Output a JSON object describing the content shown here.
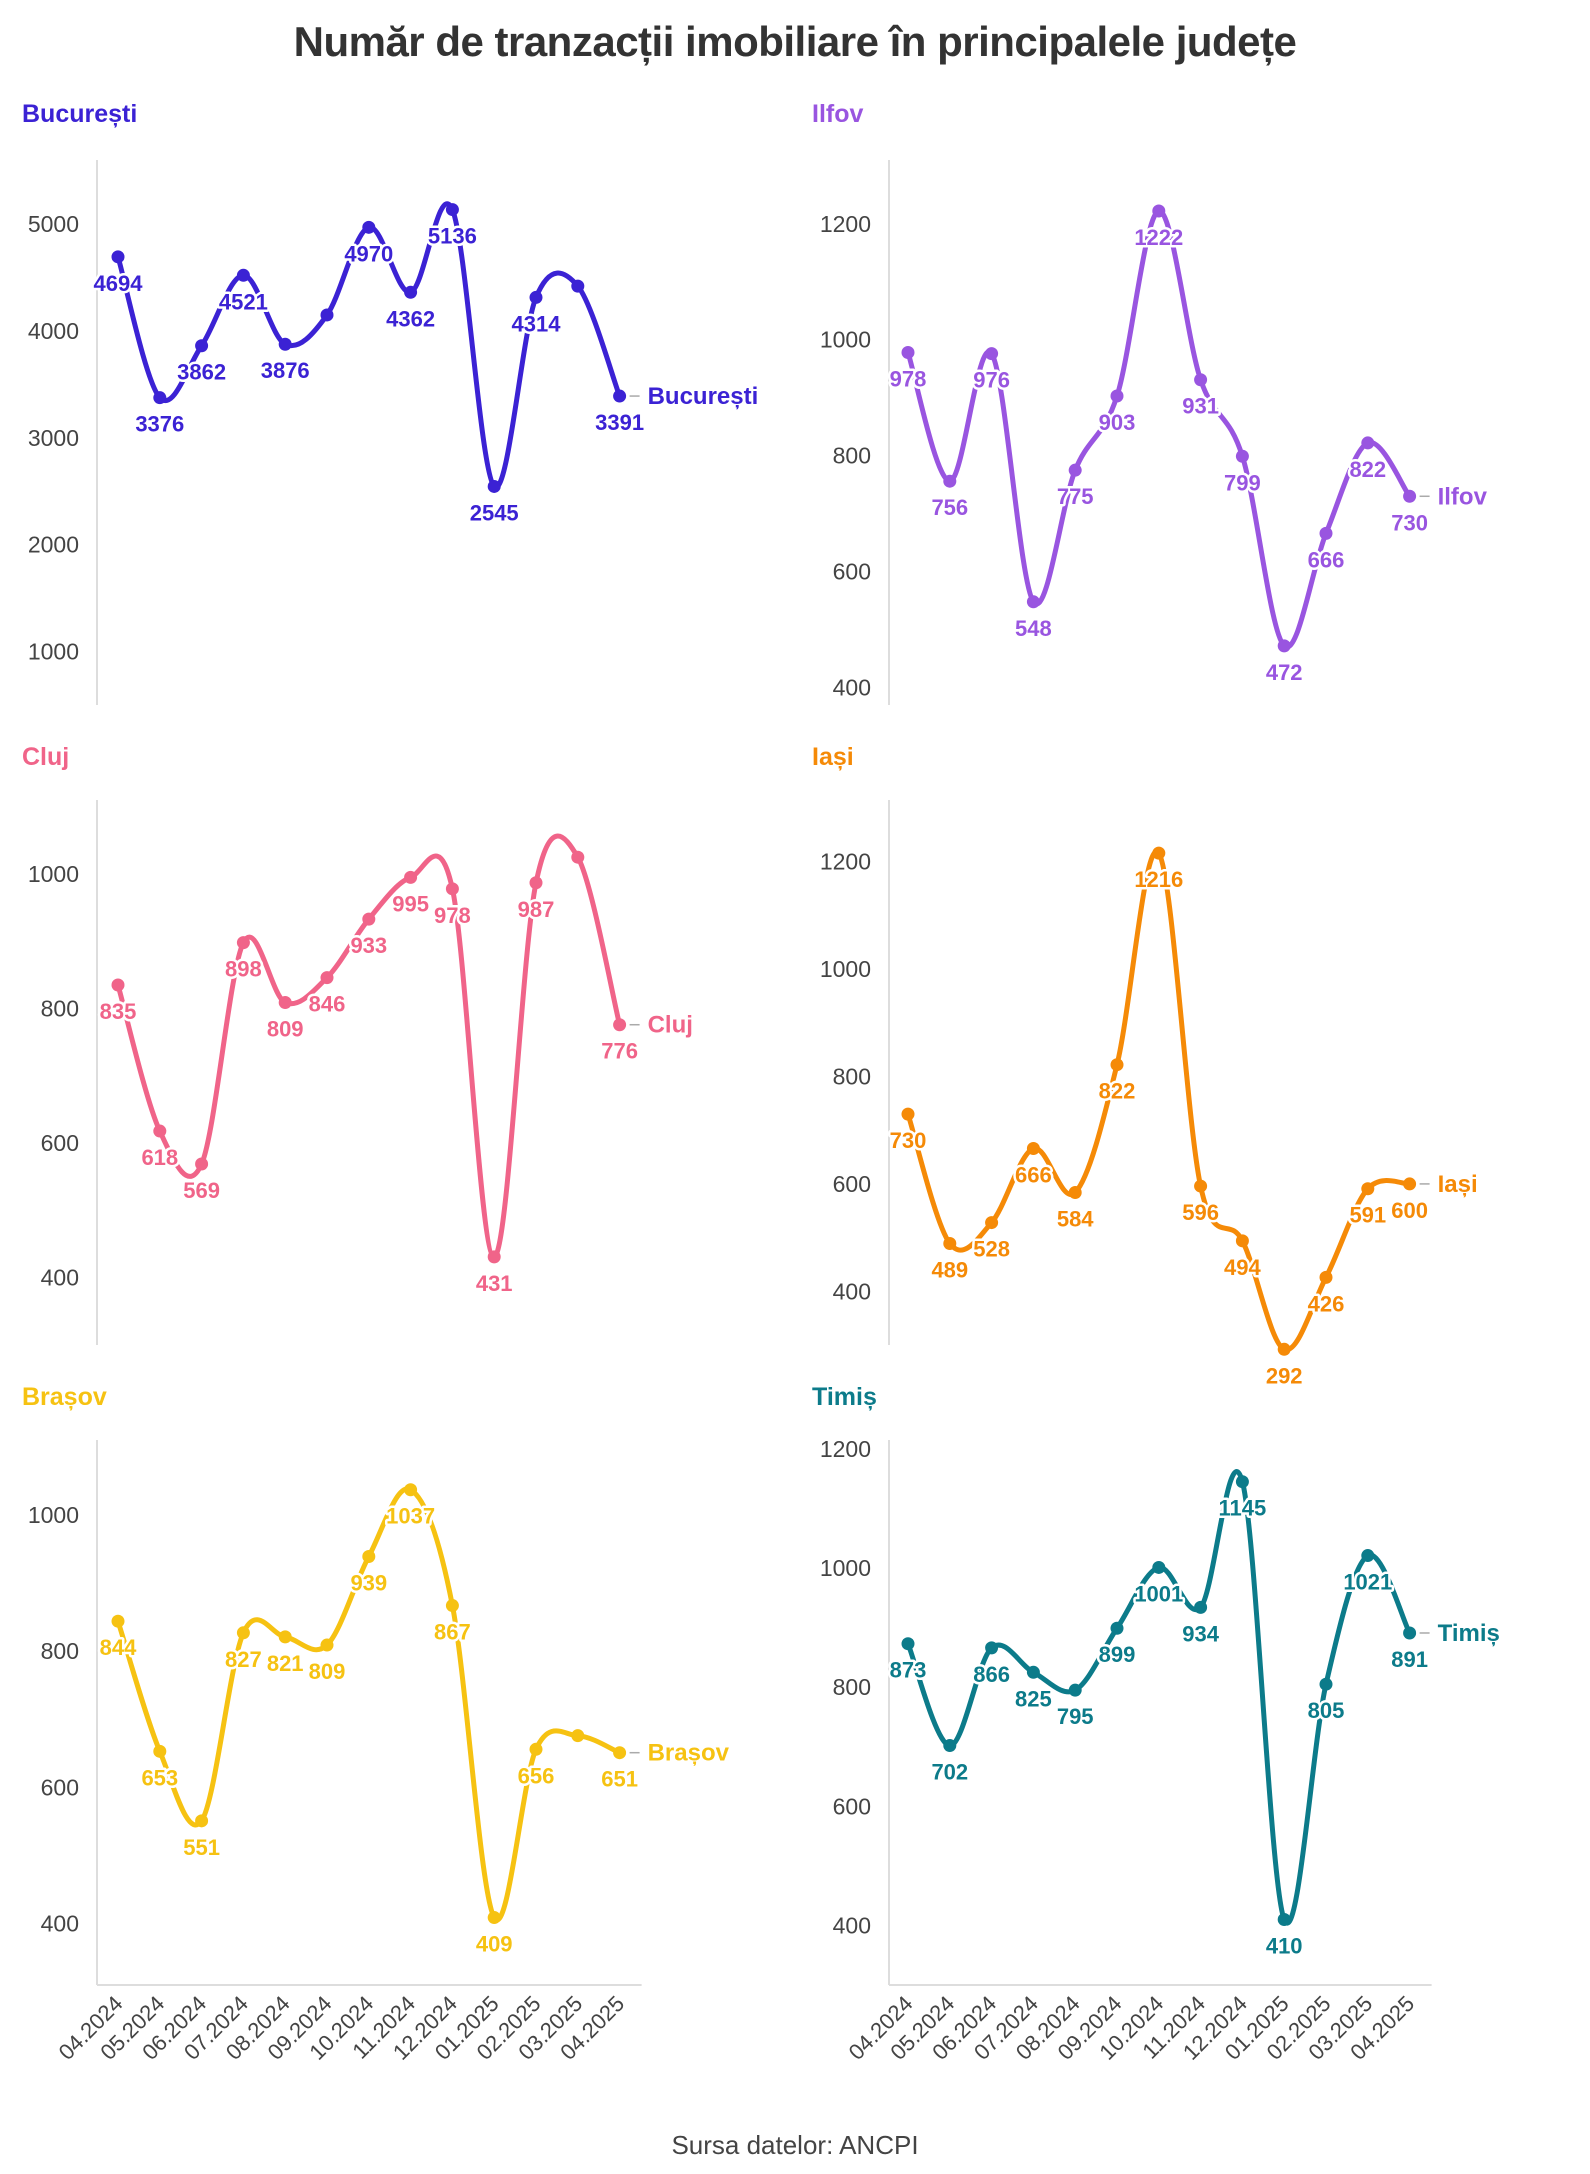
{
  "title": "Număr de tranzacții imobiliare în principalele județe",
  "source": "Sursa datelor: ANCPI",
  "chart_data": [
    {
      "type": "line",
      "name": "București",
      "color": "#3b22d4",
      "x": [
        "04.2024",
        "05.2024",
        "06.2024",
        "07.2024",
        "08.2024",
        "09.2024",
        "10.2024",
        "11.2024",
        "12.2024",
        "01.2025",
        "02.2025",
        "03.2025",
        "04.2025"
      ],
      "values": [
        4694,
        3376,
        3862,
        4521,
        3876,
        4150,
        4970,
        4362,
        5136,
        2545,
        4314,
        4420,
        3391
      ],
      "labels": [
        "4694",
        "3376",
        "3862",
        "4521",
        "3876",
        "",
        "4970",
        "4362",
        "5136",
        "2545",
        "4314",
        "",
        "3391"
      ],
      "yticks": [
        1000,
        2000,
        3000,
        4000,
        5000
      ],
      "ylim": [
        500,
        5600
      ],
      "end_label": "București"
    },
    {
      "type": "line",
      "name": "Ilfov",
      "color": "#9955e0",
      "x": [
        "04.2024",
        "05.2024",
        "06.2024",
        "07.2024",
        "08.2024",
        "09.2024",
        "10.2024",
        "11.2024",
        "12.2024",
        "01.2025",
        "02.2025",
        "03.2025",
        "04.2025"
      ],
      "values": [
        978,
        756,
        976,
        548,
        775,
        903,
        1222,
        931,
        799,
        472,
        666,
        822,
        730
      ],
      "labels": [
        "978",
        "756",
        "976",
        "548",
        "775",
        "903",
        "1222",
        "931",
        "799",
        "472",
        "666",
        "822",
        "730"
      ],
      "yticks": [
        400,
        600,
        800,
        1000,
        1200
      ],
      "ylim": [
        370,
        1310
      ],
      "end_label": "Ilfov"
    },
    {
      "type": "line",
      "name": "Cluj",
      "color": "#f06489",
      "x": [
        "04.2024",
        "05.2024",
        "06.2024",
        "07.2024",
        "08.2024",
        "09.2024",
        "10.2024",
        "11.2024",
        "12.2024",
        "01.2025",
        "02.2025",
        "03.2025",
        "04.2025"
      ],
      "values": [
        835,
        618,
        569,
        898,
        809,
        846,
        933,
        995,
        978,
        431,
        987,
        1025,
        776
      ],
      "labels": [
        "835",
        "618",
        "569",
        "898",
        "809",
        "846",
        "933",
        "995",
        "978",
        "431",
        "987",
        "",
        "776"
      ],
      "yticks": [
        400,
        600,
        800,
        1000
      ],
      "ylim": [
        300,
        1110
      ],
      "end_label": "Cluj"
    },
    {
      "type": "line",
      "name": "Iași",
      "color": "#f58a07",
      "x": [
        "04.2024",
        "05.2024",
        "06.2024",
        "07.2024",
        "08.2024",
        "09.2024",
        "10.2024",
        "11.2024",
        "12.2024",
        "01.2025",
        "02.2025",
        "03.2025",
        "04.2025"
      ],
      "values": [
        730,
        489,
        528,
        666,
        584,
        822,
        1216,
        596,
        494,
        292,
        426,
        591,
        600
      ],
      "labels": [
        "730",
        "489",
        "528",
        "666",
        "584",
        "822",
        "1216",
        "596",
        "494",
        "292",
        "426",
        "591",
        "600"
      ],
      "yticks": [
        400,
        600,
        800,
        1000,
        1200
      ],
      "ylim": [
        300,
        1315
      ],
      "end_label": "Iași"
    },
    {
      "type": "line",
      "name": "Brașov",
      "color": "#f6c212",
      "x": [
        "04.2024",
        "05.2024",
        "06.2024",
        "07.2024",
        "08.2024",
        "09.2024",
        "10.2024",
        "11.2024",
        "12.2024",
        "01.2025",
        "02.2025",
        "03.2025",
        "04.2025"
      ],
      "values": [
        844,
        653,
        551,
        827,
        821,
        809,
        939,
        1037,
        867,
        409,
        656,
        676,
        651
      ],
      "labels": [
        "844",
        "653",
        "551",
        "827",
        "821",
        "809",
        "939",
        "1037",
        "867",
        "409",
        "656",
        "",
        "651"
      ],
      "yticks": [
        400,
        600,
        800,
        1000
      ],
      "ylim": [
        310,
        1110
      ],
      "end_label": "Brașov"
    },
    {
      "type": "line",
      "name": "Timiș",
      "color": "#0c7b8a",
      "x": [
        "04.2024",
        "05.2024",
        "06.2024",
        "07.2024",
        "08.2024",
        "09.2024",
        "10.2024",
        "11.2024",
        "12.2024",
        "01.2025",
        "02.2025",
        "03.2025",
        "04.2025"
      ],
      "values": [
        873,
        702,
        866,
        825,
        795,
        899,
        1001,
        934,
        1145,
        410,
        805,
        1021,
        891
      ],
      "labels": [
        "873",
        "702",
        "866",
        "825",
        "795",
        "899",
        "1001",
        "934",
        "1145",
        "410",
        "805",
        "1021",
        "891"
      ],
      "yticks": [
        400,
        600,
        800,
        1000,
        1200
      ],
      "ylim": [
        300,
        1215
      ],
      "end_label": "Timiș"
    }
  ]
}
